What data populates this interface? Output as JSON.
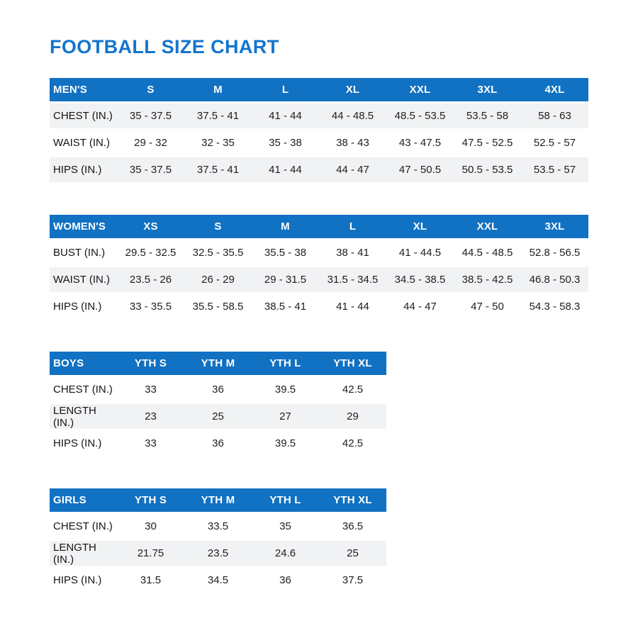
{
  "page": {
    "title": "FOOTBALL SIZE CHART"
  },
  "colors": {
    "header_blue": "#1171C2",
    "title_blue": "#1375CE",
    "stripe_gray": "#F1F2F3",
    "text_dark": "#1E1E20"
  },
  "tables": [
    {
      "id": "mens",
      "label": "MEN'S",
      "columns": [
        "S",
        "M",
        "L",
        "XL",
        "XXL",
        "3XL",
        "4XL"
      ],
      "striped_rows": [
        0,
        2
      ],
      "rows": [
        {
          "label": "CHEST (IN.)",
          "values": [
            "35 - 37.5",
            "37.5 - 41",
            "41 - 44",
            "44 - 48.5",
            "48.5 - 53.5",
            "53.5 - 58",
            "58 - 63"
          ]
        },
        {
          "label": "WAIST (IN.)",
          "values": [
            "29 - 32",
            "32 - 35",
            "35 - 38",
            "38 - 43",
            "43 - 47.5",
            "47.5 - 52.5",
            "52.5 - 57"
          ]
        },
        {
          "label": "HIPS (IN.)",
          "values": [
            "35 - 37.5",
            "37.5 - 41",
            "41 - 44",
            "44 - 47",
            "47 - 50.5",
            "50.5 - 53.5",
            "53.5 - 57"
          ]
        }
      ]
    },
    {
      "id": "womens",
      "label": "WOMEN'S",
      "columns": [
        "XS",
        "S",
        "M",
        "L",
        "XL",
        "XXL",
        "3XL"
      ],
      "striped_rows": [
        1
      ],
      "rows": [
        {
          "label": "BUST (IN.)",
          "values": [
            "29.5 - 32.5",
            "32.5 - 35.5",
            "35.5 - 38",
            "38 - 41",
            "41 - 44.5",
            "44.5 - 48.5",
            "52.8 - 56.5"
          ]
        },
        {
          "label": "WAIST (IN.)",
          "values": [
            "23.5 - 26",
            "26 - 29",
            "29 - 31.5",
            "31.5 - 34.5",
            "34.5 - 38.5",
            "38.5 - 42.5",
            "46.8 - 50.3"
          ]
        },
        {
          "label": "HIPS (IN.)",
          "values": [
            "33 - 35.5",
            "35.5 - 58.5",
            "38.5 - 41",
            "41 - 44",
            "44 - 47",
            "47 - 50",
            "54.3 - 58.3"
          ]
        }
      ]
    },
    {
      "id": "boys",
      "label": "BOYS",
      "columns": [
        "YTH S",
        "YTH M",
        "YTH L",
        "YTH XL"
      ],
      "striped_rows": [
        1
      ],
      "rows": [
        {
          "label": "CHEST (IN.)",
          "values": [
            "33",
            "36",
            "39.5",
            "42.5"
          ]
        },
        {
          "label": "LENGTH (IN.)",
          "values": [
            "23",
            "25",
            "27",
            "29"
          ]
        },
        {
          "label": "HIPS (IN.)",
          "values": [
            "33",
            "36",
            "39.5",
            "42.5"
          ]
        }
      ]
    },
    {
      "id": "girls",
      "label": "GIRLS",
      "columns": [
        "YTH S",
        "YTH M",
        "YTH L",
        "YTH XL"
      ],
      "striped_rows": [
        1
      ],
      "rows": [
        {
          "label": "CHEST (IN.)",
          "values": [
            "30",
            "33.5",
            "35",
            "36.5"
          ]
        },
        {
          "label": "LENGTH (IN.)",
          "values": [
            "21.75",
            "23.5",
            "24.6",
            "25"
          ]
        },
        {
          "label": "HIPS (IN.)",
          "values": [
            "31.5",
            "34.5",
            "36",
            "37.5"
          ]
        }
      ]
    }
  ]
}
